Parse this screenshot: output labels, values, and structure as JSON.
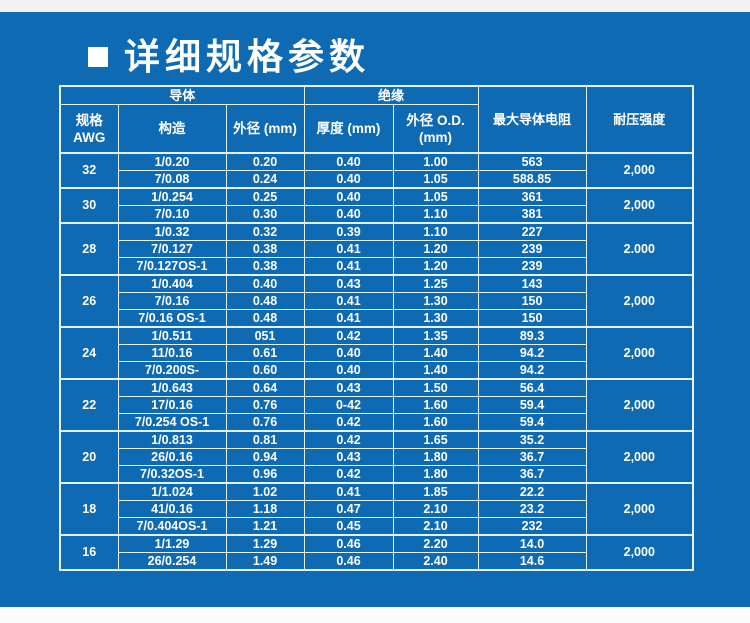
{
  "page": {
    "title": "详细规格参数",
    "colors": {
      "background": "#0f6ab4",
      "table_line": "#e4f2fb",
      "text": "#ffffff"
    }
  },
  "table": {
    "header": {
      "conductor_group": "导体",
      "insulation_group": "绝缘",
      "spec_line1": "规格",
      "spec_line2": "AWG",
      "construction": "构造",
      "conductor_od": "外径  (mm)",
      "thickness": "厚度 (mm)",
      "insulation_od_line1": "外径  O.D.",
      "insulation_od_line2": "(mm)",
      "max_resistance": "最大导体电阻",
      "voltage_strength": "耐压强度"
    },
    "groups": [
      {
        "awg": "32",
        "voltage": "2,000",
        "rows": [
          [
            "1/0.20",
            "0.20",
            "0.40",
            "1.00",
            "563"
          ],
          [
            "7/0.08",
            "0.24",
            "0.40",
            "1.05",
            "588.85"
          ]
        ]
      },
      {
        "awg": "30",
        "voltage": "2,000",
        "rows": [
          [
            "1/0.254",
            "0.25",
            "0.40",
            "1.05",
            "361"
          ],
          [
            "7/0.10",
            "0.30",
            "0.40",
            "1.10",
            "381"
          ]
        ]
      },
      {
        "awg": "28",
        "voltage": "2.000",
        "rows": [
          [
            "1/0.32",
            "0.32",
            "0.39",
            "1.10",
            "227"
          ],
          [
            "7/0.127",
            "0.38",
            "0.41",
            "1.20",
            "239"
          ],
          [
            "7/0.127OS-1",
            "0.38",
            "0.41",
            "1.20",
            "239"
          ]
        ]
      },
      {
        "awg": "26",
        "voltage": "2,000",
        "rows": [
          [
            "1/0.404",
            "0.40",
            "0.43",
            "1.25",
            "143"
          ],
          [
            "7/0.16",
            "0.48",
            "0.41",
            "1.30",
            "150"
          ],
          [
            "7/0.16 OS-1",
            "0.48",
            "0.41",
            "1.30",
            "150"
          ]
        ]
      },
      {
        "awg": "24",
        "voltage": "2,000",
        "rows": [
          [
            "1/0.511",
            "051",
            "0.42",
            "1.35",
            "89.3"
          ],
          [
            "11/0.16",
            "0.61",
            "0.40",
            "1.40",
            "94.2"
          ],
          [
            "7/0.200S-",
            "0.60",
            "0.40",
            "1.40",
            "94.2"
          ]
        ]
      },
      {
        "awg": "22",
        "voltage": "2,000",
        "rows": [
          [
            "1/0.643",
            "0.64",
            "0.43",
            "1.50",
            "56.4"
          ],
          [
            "17/0.16",
            "0.76",
            "0-42",
            "1.60",
            "59.4"
          ],
          [
            "7/0.254 OS-1",
            "0.76",
            "0.42",
            "1.60",
            "59.4"
          ]
        ]
      },
      {
        "awg": "20",
        "voltage": "2,000",
        "rows": [
          [
            "1/0.813",
            "0.81",
            "0.42",
            "1.65",
            "35.2"
          ],
          [
            "26/0.16",
            "0.94",
            "0.43",
            "1.80",
            "36.7"
          ],
          [
            "7/0.32OS-1",
            "0.96",
            "0.42",
            "1.80",
            "36.7"
          ]
        ]
      },
      {
        "awg": "18",
        "voltage": "2,000",
        "rows": [
          [
            "1/1.024",
            "1.02",
            "0.41",
            "1.85",
            "22.2"
          ],
          [
            "41/0.16",
            "1.18",
            "0.47",
            "2.10",
            "23.2"
          ],
          [
            "7/0.404OS-1",
            "1.21",
            "0.45",
            "2.10",
            "232"
          ]
        ]
      },
      {
        "awg": "16",
        "voltage": "2,000",
        "rows": [
          [
            "1/1.29",
            "1.29",
            "0.46",
            "2.20",
            "14.0"
          ],
          [
            "26/0.254",
            "1.49",
            "0.46",
            "2.40",
            "14.6"
          ]
        ]
      }
    ]
  }
}
